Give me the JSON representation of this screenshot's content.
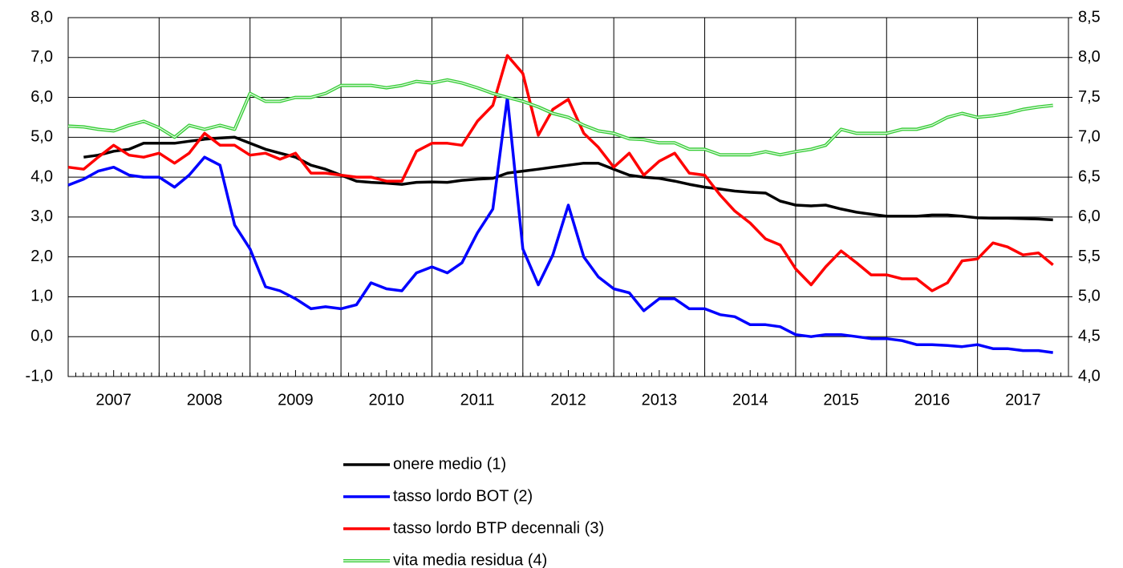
{
  "chart_data": {
    "type": "line",
    "x": [
      2007,
      2007.17,
      2007.33,
      2007.5,
      2007.67,
      2007.83,
      2008,
      2008.17,
      2008.33,
      2008.5,
      2008.67,
      2008.83,
      2009,
      2009.17,
      2009.33,
      2009.5,
      2009.67,
      2009.83,
      2010,
      2010.17,
      2010.33,
      2010.5,
      2010.67,
      2010.83,
      2011,
      2011.17,
      2011.33,
      2011.5,
      2011.67,
      2011.83,
      2012,
      2012.17,
      2012.33,
      2012.5,
      2012.67,
      2012.83,
      2013,
      2013.17,
      2013.33,
      2013.5,
      2013.67,
      2013.83,
      2014,
      2014.17,
      2014.33,
      2014.5,
      2014.67,
      2014.83,
      2015,
      2015.17,
      2015.33,
      2015.5,
      2015.67,
      2015.83,
      2016,
      2016.17,
      2016.33,
      2016.5,
      2016.67,
      2016.83,
      2017,
      2017.17,
      2017.33,
      2017.5,
      2017.67,
      2017.83
    ],
    "xlim": [
      2007,
      2018
    ],
    "xticks": [
      {
        "value": 2007.5,
        "label": "2007"
      },
      {
        "value": 2008.5,
        "label": "2008"
      },
      {
        "value": 2009.5,
        "label": "2009"
      },
      {
        "value": 2010.5,
        "label": "2010"
      },
      {
        "value": 2011.5,
        "label": "2011"
      },
      {
        "value": 2012.5,
        "label": "2012"
      },
      {
        "value": 2013.5,
        "label": "2013"
      },
      {
        "value": 2014.5,
        "label": "2014"
      },
      {
        "value": 2015.5,
        "label": "2015"
      },
      {
        "value": 2016.5,
        "label": "2016"
      },
      {
        "value": 2017.5,
        "label": "2017"
      }
    ],
    "ylim": [
      -1,
      8
    ],
    "yticks": [
      {
        "value": -1,
        "label": "-1,0"
      },
      {
        "value": 0,
        "label": "0,0"
      },
      {
        "value": 1,
        "label": "1,0"
      },
      {
        "value": 2,
        "label": "2,0"
      },
      {
        "value": 3,
        "label": "3,0"
      },
      {
        "value": 4,
        "label": "4,0"
      },
      {
        "value": 5,
        "label": "5,0"
      },
      {
        "value": 6,
        "label": "6,0"
      },
      {
        "value": 7,
        "label": "7,0"
      },
      {
        "value": 8,
        "label": "8,0"
      }
    ],
    "y2lim": [
      4,
      8.5
    ],
    "y2ticks": [
      {
        "value": 4,
        "label": "4,0"
      },
      {
        "value": 4.5,
        "label": "4,5"
      },
      {
        "value": 5,
        "label": "5,0"
      },
      {
        "value": 5.5,
        "label": "5,5"
      },
      {
        "value": 6,
        "label": "6,0"
      },
      {
        "value": 6.5,
        "label": "6,5"
      },
      {
        "value": 7,
        "label": "7,0"
      },
      {
        "value": 7.5,
        "label": "7,5"
      },
      {
        "value": 8,
        "label": "8,0"
      },
      {
        "value": 8.5,
        "label": "8,5"
      }
    ],
    "grid": true,
    "legend": "bottom",
    "series": [
      {
        "name": "onere medio (1)",
        "color": "#000000",
        "values": [
          null,
          4.5,
          4.55,
          4.65,
          4.7,
          4.85,
          4.85,
          4.85,
          4.9,
          4.95,
          4.98,
          5.0,
          4.85,
          4.7,
          4.6,
          4.5,
          4.3,
          4.2,
          4.05,
          3.9,
          3.87,
          3.85,
          3.82,
          3.87,
          3.88,
          3.87,
          3.92,
          3.95,
          3.97,
          4.1,
          4.15,
          4.2,
          4.25,
          4.3,
          4.35,
          4.35,
          4.2,
          4.05,
          4.0,
          3.97,
          3.9,
          3.82,
          3.75,
          3.7,
          3.65,
          3.62,
          3.6,
          3.4,
          3.3,
          3.28,
          3.3,
          3.2,
          3.12,
          3.07,
          3.02,
          3.02,
          3.02,
          3.05,
          3.05,
          3.02,
          2.98,
          2.97,
          2.97,
          2.96,
          2.95,
          2.93
        ]
      },
      {
        "name": "tasso lordo BOT (2)",
        "color": "#0000ff",
        "values": [
          3.8,
          3.95,
          4.15,
          4.25,
          4.05,
          4.0,
          4.0,
          3.75,
          4.05,
          4.5,
          4.3,
          2.8,
          2.2,
          1.25,
          1.15,
          0.95,
          0.7,
          0.75,
          0.7,
          0.8,
          1.35,
          1.2,
          1.15,
          1.6,
          1.75,
          1.6,
          1.85,
          2.6,
          3.2,
          6.0,
          2.2,
          1.3,
          2.05,
          3.3,
          2.0,
          1.5,
          1.2,
          1.1,
          0.65,
          0.95,
          0.95,
          0.7,
          0.7,
          0.55,
          0.5,
          0.3,
          0.3,
          0.25,
          0.05,
          0.0,
          0.05,
          0.05,
          0.0,
          -0.05,
          -0.05,
          -0.1,
          -0.2,
          -0.2,
          -0.22,
          -0.25,
          -0.2,
          -0.3,
          -0.3,
          -0.35,
          -0.35,
          -0.4
        ]
      },
      {
        "name": "tasso lordo BTP decennali (3)",
        "color": "#ff0000",
        "values": [
          4.25,
          4.2,
          4.5,
          4.8,
          4.55,
          4.5,
          4.6,
          4.35,
          4.6,
          5.1,
          4.8,
          4.8,
          4.55,
          4.6,
          4.45,
          4.6,
          4.1,
          4.1,
          4.05,
          4.0,
          4.0,
          3.9,
          3.9,
          4.65,
          4.85,
          4.85,
          4.8,
          5.4,
          5.8,
          7.05,
          6.6,
          5.05,
          5.7,
          5.95,
          5.1,
          4.75,
          4.25,
          4.6,
          4.05,
          4.4,
          4.6,
          4.1,
          4.05,
          3.55,
          3.15,
          2.85,
          2.45,
          2.3,
          1.7,
          1.3,
          1.75,
          2.15,
          1.85,
          1.55,
          1.55,
          1.45,
          1.45,
          1.15,
          1.35,
          1.9,
          1.95,
          2.35,
          2.25,
          2.05,
          2.1,
          1.8
        ]
      },
      {
        "name": "vita media residua (4)",
        "color": "#33cc33",
        "axis": "y2",
        "values": [
          7.14,
          7.13,
          7.1,
          7.08,
          7.15,
          7.2,
          7.12,
          7.0,
          7.15,
          7.1,
          7.15,
          7.1,
          7.55,
          7.45,
          7.45,
          7.5,
          7.5,
          7.55,
          7.65,
          7.65,
          7.65,
          7.62,
          7.65,
          7.7,
          7.68,
          7.72,
          7.68,
          7.62,
          7.55,
          7.5,
          7.45,
          7.38,
          7.3,
          7.25,
          7.15,
          7.08,
          7.05,
          6.98,
          6.97,
          6.93,
          6.93,
          6.85,
          6.85,
          6.78,
          6.78,
          6.78,
          6.82,
          6.78,
          6.82,
          6.85,
          6.9,
          7.1,
          7.05,
          7.05,
          7.05,
          7.1,
          7.1,
          7.15,
          7.25,
          7.3,
          7.25,
          7.27,
          7.3,
          7.35,
          7.38,
          7.4
        ]
      }
    ]
  }
}
